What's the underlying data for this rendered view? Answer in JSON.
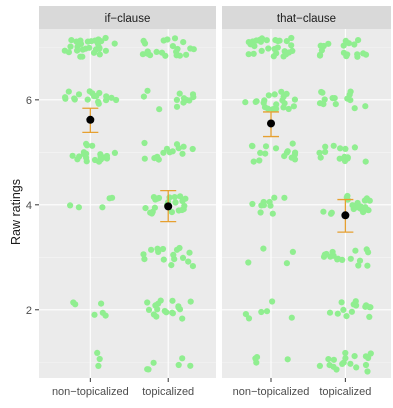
{
  "chart_data": {
    "type": "scatter",
    "subtype": "jittered-strip-with-error-bars",
    "ylabel": "Raw ratings",
    "xlabel": "",
    "y_ticks": [
      2,
      4,
      6
    ],
    "ylim": [
      0.7,
      7.35
    ],
    "categories": [
      "non−topicalized",
      "topicalized"
    ],
    "grid": true,
    "legend": "none",
    "colors": {
      "points": "#90ee90",
      "mean": "#000000",
      "error_bar": "#e6a030",
      "panel_bg": "#ebebeb",
      "strip_bg": "#d9d9d9"
    },
    "facets": [
      {
        "label": "if−clause",
        "means": [
          5.62,
          3.97
        ],
        "ci_low": [
          5.38,
          3.68
        ],
        "ci_high": [
          5.84,
          4.27
        ],
        "counts": [
          [
            3,
            6,
            0,
            5,
            20,
            18,
            28
          ],
          [
            6,
            18,
            16,
            22,
            14,
            12,
            22
          ]
        ]
      },
      {
        "label": "that−clause",
        "means": [
          5.55,
          3.8
        ],
        "ci_low": [
          5.3,
          3.48
        ],
        "ci_high": [
          5.77,
          4.1
        ],
        "counts": [
          [
            4,
            6,
            4,
            10,
            16,
            22,
            28
          ],
          [
            18,
            14,
            16,
            20,
            14,
            14,
            18
          ]
        ]
      }
    ]
  }
}
